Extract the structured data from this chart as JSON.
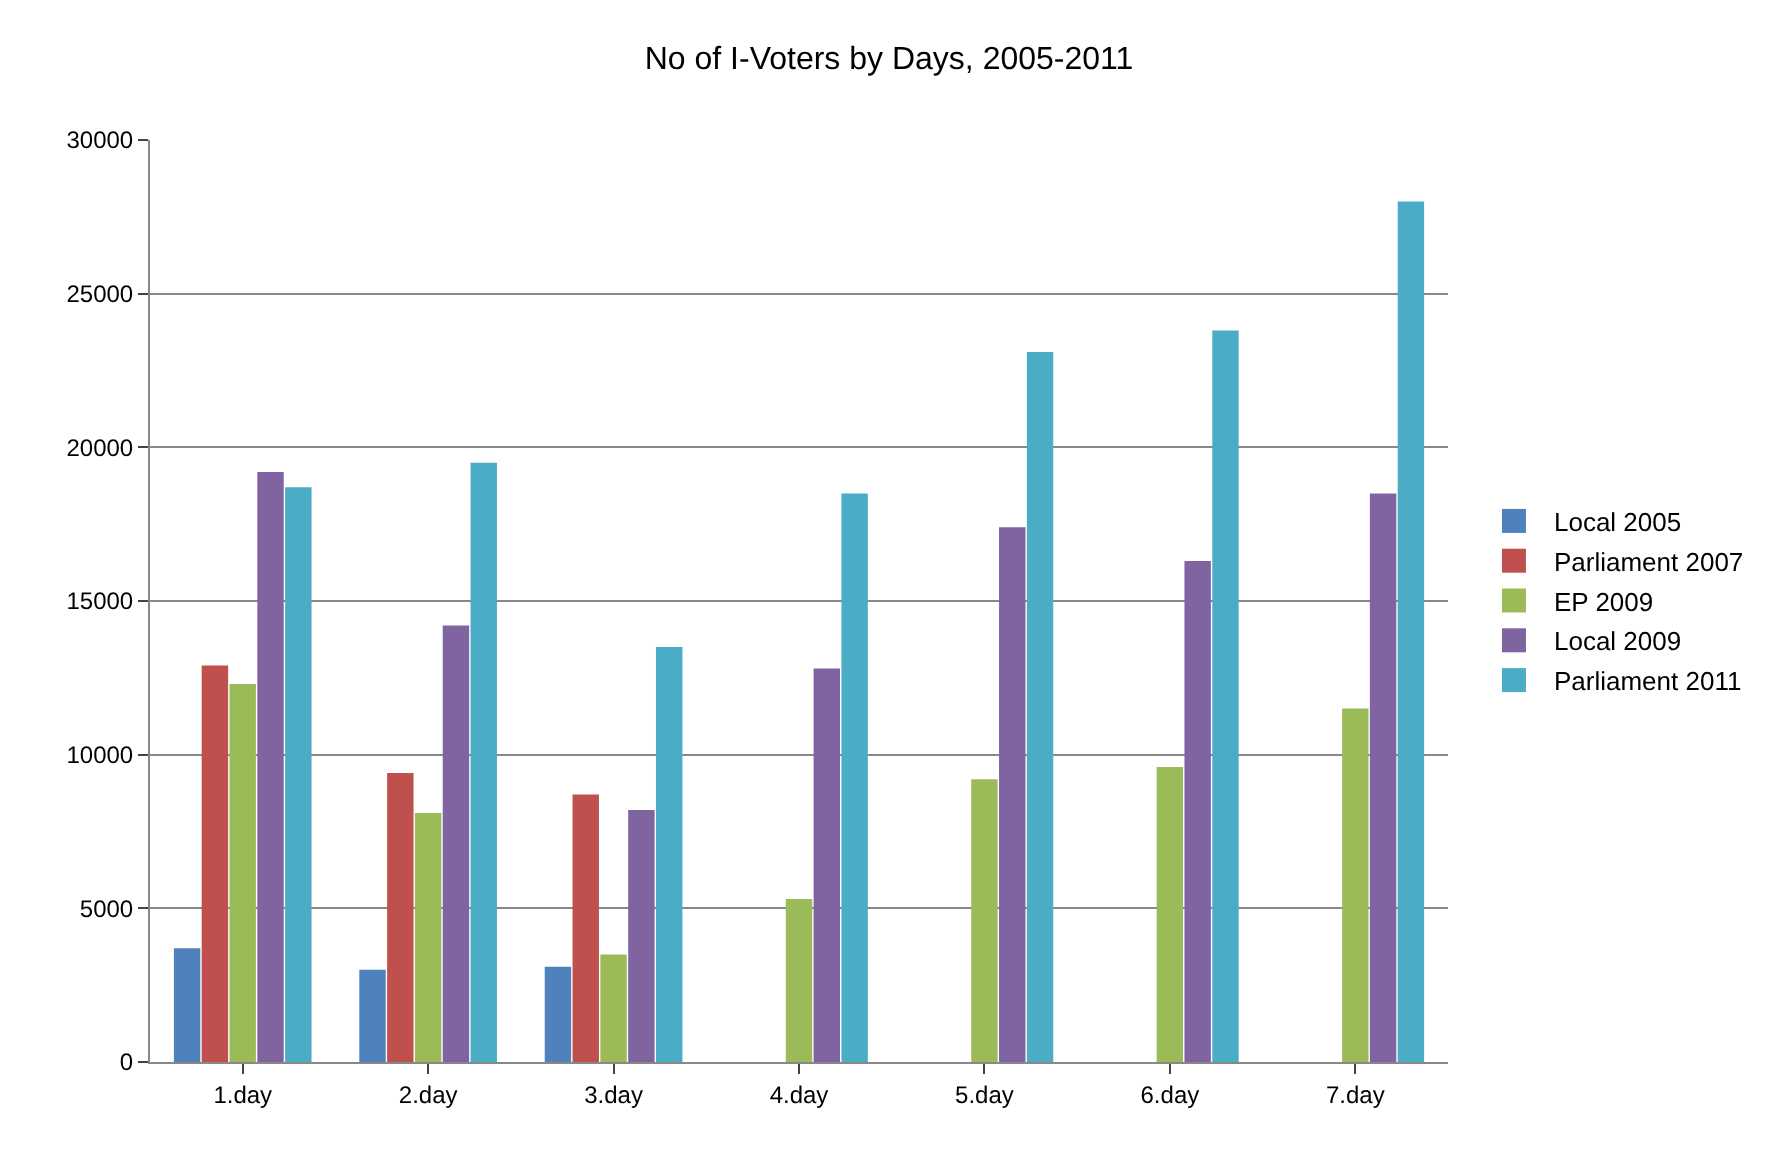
{
  "chart_data": {
    "type": "bar",
    "title": "No of I-Voters by Days, 2005-2011",
    "categories": [
      "1.day",
      "2.day",
      "3.day",
      "4.day",
      "5.day",
      "6.day",
      "7.day"
    ],
    "series": [
      {
        "name": "Local 2005",
        "color": "#4f81bd",
        "values": [
          3700,
          3000,
          3100,
          null,
          null,
          null,
          null
        ]
      },
      {
        "name": "Parliament 2007",
        "color": "#c0504d",
        "values": [
          12900,
          9400,
          8700,
          null,
          null,
          null,
          null
        ]
      },
      {
        "name": "EP 2009",
        "color": "#9bbb59",
        "values": [
          12300,
          8100,
          3500,
          5300,
          9200,
          9600,
          11500
        ]
      },
      {
        "name": "Local 2009",
        "color": "#8064a2",
        "values": [
          19200,
          14200,
          8200,
          12800,
          17400,
          16300,
          18500
        ]
      },
      {
        "name": "Parliament 2011",
        "color": "#4bacc6",
        "values": [
          18700,
          19500,
          13500,
          18500,
          23100,
          23800,
          28000
        ]
      }
    ],
    "ylim": [
      0,
      30000
    ],
    "yticks": [
      0,
      5000,
      10000,
      15000,
      20000,
      25000,
      30000
    ],
    "grid": "y",
    "legend": "right"
  }
}
